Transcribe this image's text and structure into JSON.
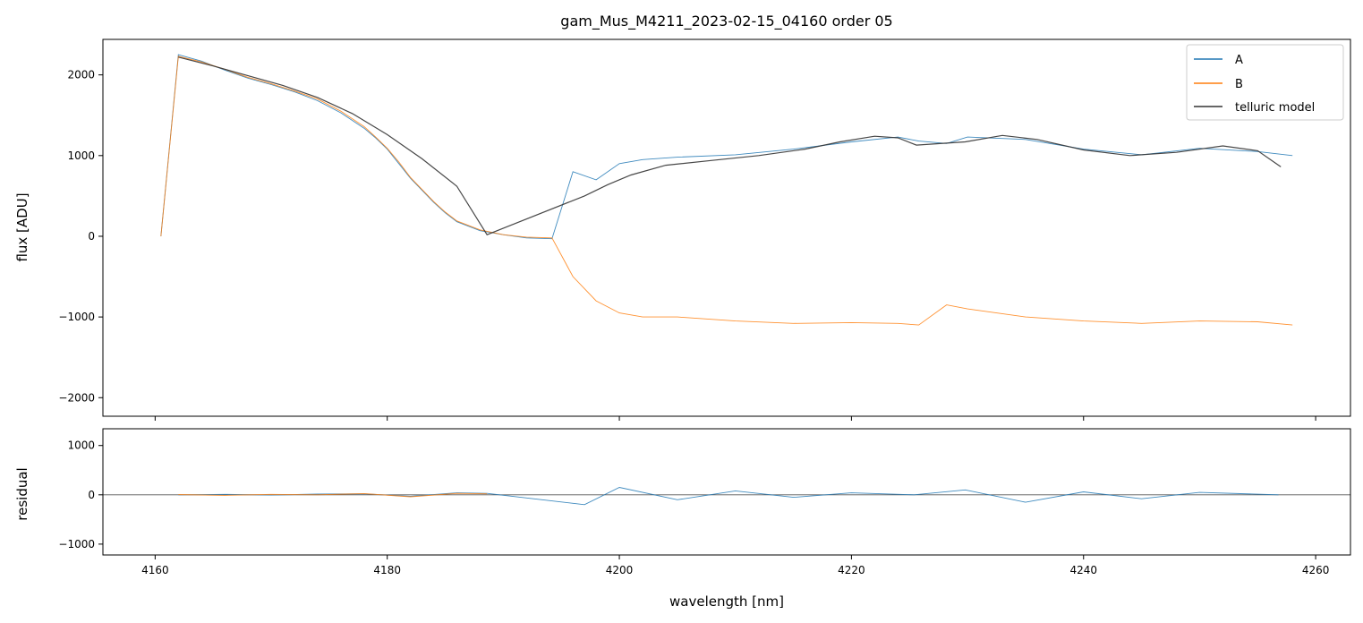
{
  "chart_data": [
    {
      "type": "line",
      "title": "gam_Mus_M4211_2023-02-15_04160  order 05",
      "xlabel": "",
      "ylabel": "flux [ADU]",
      "xlim": [
        4155.5,
        4263.0
      ],
      "ylim": [
        -2230,
        2440
      ],
      "x_ticks": [
        4160,
        4180,
        4200,
        4220,
        4240,
        4260
      ],
      "y_ticks": [
        -2000,
        -1000,
        0,
        1000,
        2000
      ],
      "y_tick_labels": [
        "−2000",
        "−1000",
        "0",
        "1000",
        "2000"
      ],
      "grid": false,
      "legend_position": "top-right",
      "series": [
        {
          "name": "A",
          "color": "#1f77b4",
          "x": [
            4160.5,
            4162,
            4164,
            4166,
            4168,
            4170,
            4172,
            4174,
            4176,
            4178,
            4179,
            4180,
            4181,
            4182,
            4183,
            4184,
            4185,
            4186,
            4188,
            4190,
            4192,
            4194.2,
            4196,
            4198,
            4200,
            4202,
            4205,
            4210,
            4215,
            4220,
            4224,
            4225.8,
            4228.2,
            4230,
            4235,
            4240,
            4245,
            4250,
            4255,
            4258
          ],
          "y": [
            0,
            2250,
            2170,
            2060,
            1960,
            1880,
            1790,
            1680,
            1530,
            1340,
            1220,
            1080,
            900,
            720,
            570,
            420,
            290,
            180,
            70,
            20,
            -20,
            -30,
            800,
            700,
            900,
            950,
            980,
            1010,
            1080,
            1170,
            1230,
            1180,
            1150,
            1230,
            1200,
            1080,
            1010,
            1090,
            1050,
            1000
          ]
        },
        {
          "name": "B",
          "color": "#ff7f0e",
          "x": [
            4160.5,
            4162,
            4164,
            4166,
            4168,
            4170,
            4172,
            4174,
            4176,
            4178,
            4179,
            4180,
            4181,
            4182,
            4183,
            4184,
            4185,
            4186,
            4188,
            4190,
            4192,
            4194.2,
            4196,
            4198,
            4200,
            4202,
            4205,
            4210,
            4215,
            4220,
            4224,
            4225.8,
            4228.2,
            4230,
            4235,
            4240,
            4245,
            4250,
            4255,
            4258
          ],
          "y": [
            0,
            2230,
            2160,
            2070,
            1970,
            1890,
            1800,
            1700,
            1550,
            1360,
            1230,
            1090,
            920,
            730,
            580,
            430,
            300,
            190,
            80,
            20,
            -10,
            -20,
            -500,
            -800,
            -950,
            -1000,
            -1000,
            -1050,
            -1080,
            -1070,
            -1080,
            -1100,
            -850,
            -900,
            -1000,
            -1050,
            -1080,
            -1050,
            -1060,
            -1100
          ]
        },
        {
          "name": "telluric model",
          "color": "#333333",
          "x": [
            4162,
            4165,
            4168,
            4171,
            4174,
            4177,
            4180,
            4183,
            4186,
            4188.6,
            4197,
            4199,
            4201,
            4204,
            4208,
            4212,
            4216,
            4219,
            4222,
            4224,
            4225.6,
            4229.8,
            4233,
            4236,
            4240,
            4244,
            4248,
            4252,
            4255,
            4257
          ],
          "y": [
            2220,
            2110,
            1990,
            1870,
            1720,
            1520,
            1260,
            960,
            620,
            20,
            500,
            640,
            760,
            880,
            940,
            1000,
            1080,
            1170,
            1240,
            1220,
            1130,
            1170,
            1250,
            1200,
            1070,
            1000,
            1040,
            1120,
            1060,
            860
          ]
        }
      ]
    },
    {
      "type": "line",
      "title": "",
      "xlabel": "wavelength [nm]",
      "ylabel": "residual",
      "xlim": [
        4155.5,
        4263.0
      ],
      "ylim": [
        -1220,
        1340
      ],
      "x_ticks": [
        4160,
        4180,
        4200,
        4220,
        4240,
        4260
      ],
      "x_tick_labels": [
        "4160",
        "4180",
        "4200",
        "4220",
        "4240",
        "4260"
      ],
      "y_ticks": [
        -1000,
        0,
        1000
      ],
      "y_tick_labels": [
        "−1000",
        "0",
        "1000"
      ],
      "grid": false,
      "reference_line_y": 0,
      "series": [
        {
          "name": "A",
          "color": "#1f77b4",
          "x": [
            4162,
            4166,
            4170,
            4174,
            4178,
            4182,
            4186,
            4188.6,
            4197,
            4200,
            4205,
            4210,
            4215,
            4220,
            4225.4,
            4229.8,
            4235,
            4240,
            4245,
            4250,
            4256.8
          ],
          "y": [
            0,
            10,
            -5,
            15,
            20,
            -30,
            40,
            30,
            -200,
            150,
            -100,
            80,
            -50,
            40,
            0,
            100,
            -150,
            60,
            -80,
            50,
            0
          ]
        },
        {
          "name": "B",
          "color": "#ff7f0e",
          "x": [
            4162,
            4166,
            4170,
            4174,
            4178,
            4182,
            4186,
            4188.6
          ],
          "y": [
            5,
            -10,
            10,
            0,
            25,
            -40,
            30,
            20
          ]
        }
      ]
    }
  ]
}
